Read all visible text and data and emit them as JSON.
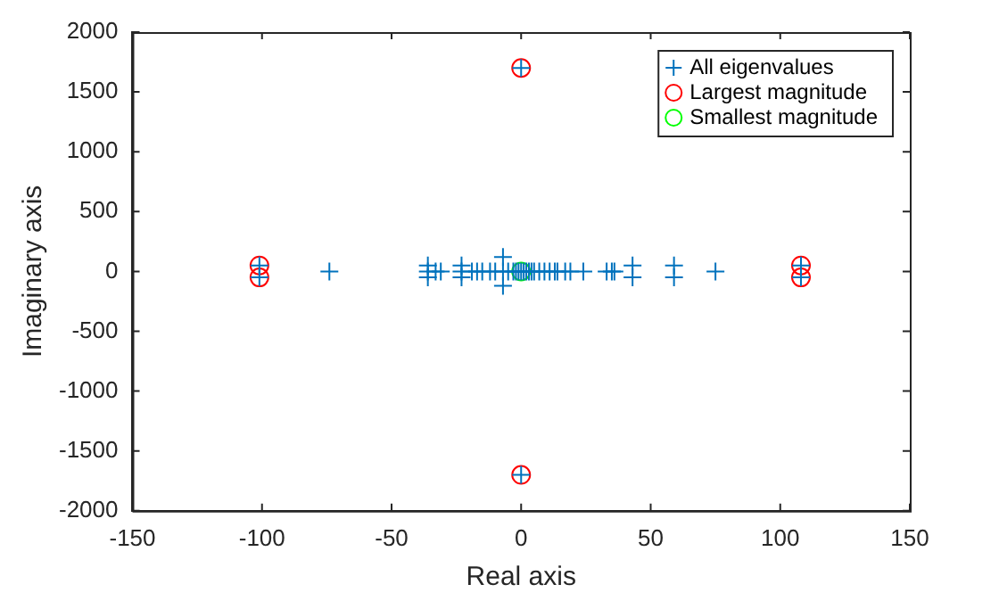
{
  "chart_data": {
    "type": "scatter",
    "xlabel": "Real axis",
    "ylabel": "Imaginary axis",
    "xlim": [
      -150,
      150
    ],
    "xticks": [
      -150,
      -100,
      -50,
      0,
      50,
      100,
      150
    ],
    "ylim": [
      -2000,
      2000
    ],
    "yticks": [
      -2000,
      -1500,
      -1000,
      -500,
      0,
      500,
      1000,
      1500,
      2000
    ],
    "grid": false,
    "legend": "top right",
    "series": [
      {
        "name": "All eigenvalues",
        "color": "#0072bd",
        "marker": "cross",
        "x": [
          -101,
          -101,
          108,
          108,
          0,
          0,
          -74,
          -36,
          -36,
          -36,
          -33,
          -31,
          -23,
          -23,
          -23,
          -19,
          -17,
          -15,
          -12,
          -10,
          -7,
          -7,
          -7,
          -5,
          -3,
          -2,
          -1,
          0,
          1,
          2,
          3,
          4,
          5,
          7,
          9,
          11,
          13,
          14,
          17,
          19,
          24,
          33,
          35,
          36,
          43,
          43,
          59,
          59,
          75
        ],
        "values": [
          50,
          -50,
          50,
          -50,
          1700,
          -1700,
          0,
          0,
          50,
          -50,
          0,
          0,
          50,
          -50,
          0,
          0,
          0,
          0,
          0,
          0,
          120,
          -120,
          0,
          0,
          0,
          0,
          0,
          0,
          0,
          0,
          0,
          0,
          0,
          0,
          0,
          0,
          0,
          0,
          0,
          0,
          0,
          0,
          0,
          0,
          50,
          -50,
          50,
          -50,
          0
        ]
      },
      {
        "name": "Largest magnitude",
        "color": "#ff0000",
        "marker": "circle",
        "x": [
          -101,
          -101,
          108,
          108,
          0,
          0
        ],
        "values": [
          50,
          -50,
          50,
          -50,
          1700,
          -1700
        ]
      },
      {
        "name": "Smallest magnitude",
        "color": "#00ff00",
        "marker": "circle",
        "x": [
          0
        ],
        "values": [
          0
        ]
      }
    ]
  }
}
